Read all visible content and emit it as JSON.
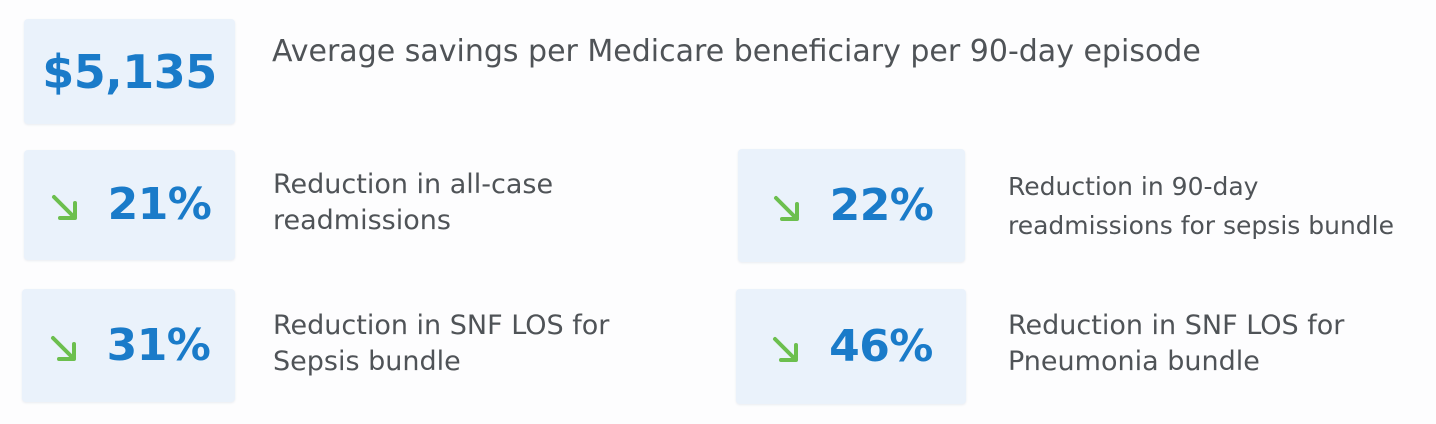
{
  "headline": {
    "value": "$5,135",
    "text": "Average savings per Medicare beneficiary per 90-day episode"
  },
  "stats": [
    {
      "value": "21%",
      "icon": "down-right-arrow-icon",
      "line1": "Reduction in all-case",
      "line2": "readmissions"
    },
    {
      "value": "22%",
      "icon": "down-right-arrow-icon",
      "line1": "Reduction in 90-day",
      "line2": "readmissions for sepsis bundle"
    },
    {
      "value": "31%",
      "icon": "down-right-arrow-icon",
      "line1": "Reduction in SNF LOS for",
      "line2": "Sepsis bundle"
    },
    {
      "value": "46%",
      "icon": "down-right-arrow-icon",
      "line1": "Reduction in SNF LOS for",
      "line2": "Pneumonia bundle"
    }
  ],
  "colors": {
    "box_background": "#eaf2fb",
    "value_blue": "#1a7bc9",
    "arrow_green": "#6cbf4e",
    "text_gray": "#4f5357"
  }
}
